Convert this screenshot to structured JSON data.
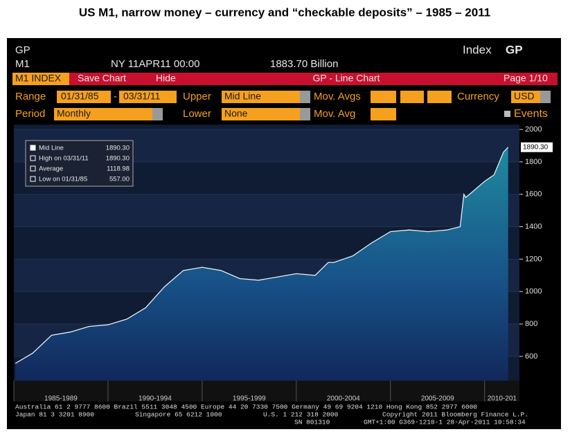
{
  "title": "US M1, narrow money – currency and “checkable deposits” –  1985 – 2011",
  "header": {
    "code": "GP",
    "index_label": "Index",
    "index_code": "GP",
    "ticker": "M1",
    "stamp": "NY 11APR11 00:00",
    "last": "1883.70 Billion"
  },
  "toolbar": {
    "tab": "M1 INDEX",
    "save": "Save Chart",
    "hide": "Hide",
    "view": "GP - Line Chart",
    "page": "Page 1/10"
  },
  "settings": {
    "range_label": "Range",
    "start": "01/31/85",
    "dash": "-",
    "end": "03/31/11",
    "upper_label": "Upper",
    "upper": "Mid Line",
    "mov_avgs_label": "Mov. Avgs",
    "currency_label": "Currency",
    "currency": "USD",
    "period_label": "Period",
    "period": "Monthly",
    "lower_label": "Lower",
    "lower": "None",
    "mov_avg_label": "Mov. Avg",
    "events": "Events"
  },
  "chart_data": {
    "type": "area",
    "color": "#1f8aa0",
    "line_color": "#e8eef4",
    "x": [
      1985.08,
      1986,
      1987,
      1988,
      1989,
      1990,
      1991,
      1992,
      1993,
      1994,
      1995,
      1996,
      1997,
      1998,
      1999,
      2000,
      2001,
      2001.7,
      2002,
      2003,
      2004,
      2005,
      2006,
      2007,
      2008,
      2008.7,
      2008.9,
      2009,
      2010,
      2010.5,
      2011,
      2011.25
    ],
    "values": [
      557,
      620,
      730,
      750,
      785,
      795,
      830,
      900,
      1030,
      1130,
      1150,
      1130,
      1080,
      1070,
      1090,
      1110,
      1100,
      1180,
      1180,
      1220,
      1300,
      1370,
      1380,
      1370,
      1380,
      1400,
      1600,
      1580,
      1680,
      1720,
      1860,
      1890.3
    ],
    "value_labels": [
      null,
      null,
      null,
      null,
      null,
      null,
      null,
      null,
      null,
      null,
      null,
      null,
      null,
      null,
      null,
      null,
      null,
      null,
      null,
      null,
      null,
      null,
      null,
      null,
      null,
      null,
      null,
      null,
      null,
      null,
      null,
      "1890.30"
    ],
    "xlim": [
      1985,
      2011.85
    ],
    "xticks": [
      {
        "value": 1985,
        "label": "1985-1989"
      },
      {
        "value": 1990,
        "label": "1990-1994"
      },
      {
        "value": 1995,
        "label": "1995-1999"
      },
      {
        "value": 2000,
        "label": "2000-2004"
      },
      {
        "value": 2005,
        "label": "2005-2009"
      },
      {
        "value": 2010,
        "label": "2010-201"
      }
    ],
    "ylim": [
      450,
      2030
    ],
    "yticks": [
      600,
      800,
      1000,
      1200,
      1400,
      1600,
      1800,
      2000
    ],
    "stats": [
      {
        "name": "Mid Line",
        "value": "1890.30"
      },
      {
        "name": "High on 03/31/11",
        "value": "1890.30"
      },
      {
        "name": "Average",
        "value": "1118.98"
      },
      {
        "name": "Low on 01/31/85",
        "value": "557.00"
      }
    ]
  },
  "footer": {
    "line1": "Australia 61 2 9777 8600 Brazil 5511 3048 4500 Europe 44 20 7330 7500 Germany 49 69 9204 1210 Hong Kong 852 2977 6000",
    "japan": "Japan 81 3 3201 8900",
    "singapore": "Singapore 65 6212 1000",
    "us": "U.S. 1 212 318 2000",
    "copyright": "Copyright 2011 Bloomberg Finance L.P.",
    "sn": "SN 801310",
    "stamp": "GMT+1:00 G369-1210-1 28-Apr-2011 10:58:34"
  }
}
